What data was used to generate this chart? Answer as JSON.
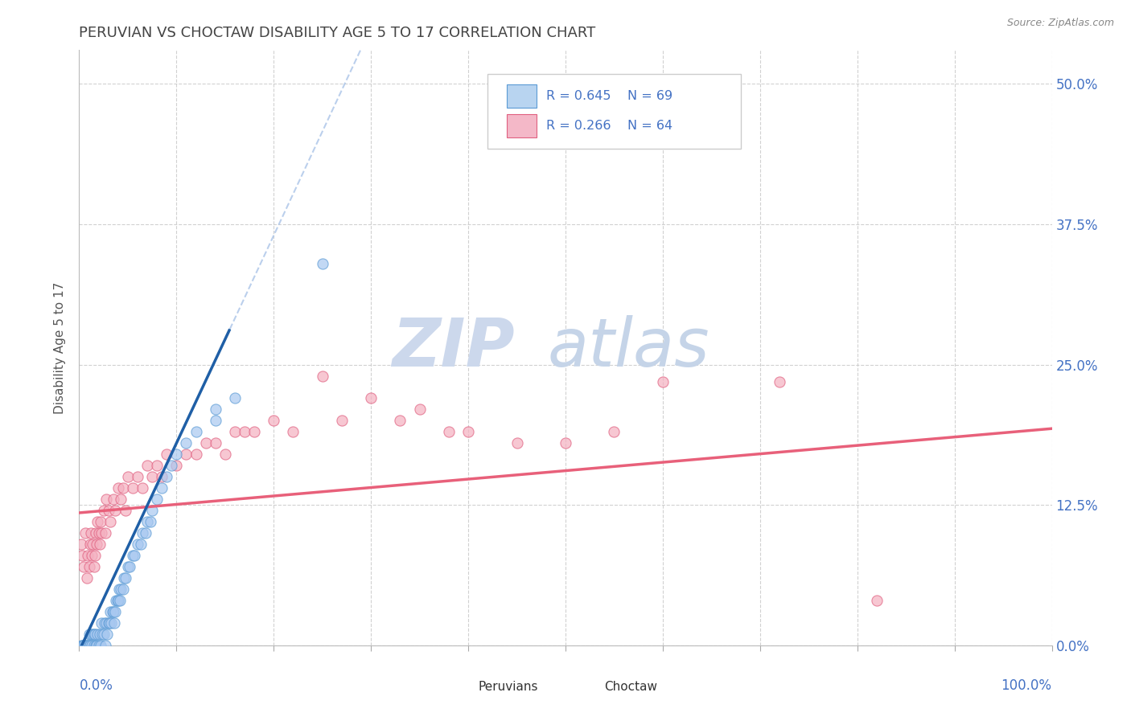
{
  "title": "PERUVIAN VS CHOCTAW DISABILITY AGE 5 TO 17 CORRELATION CHART",
  "source": "Source: ZipAtlas.com",
  "ylabel": "Disability Age 5 to 17",
  "ytick_labels": [
    "0.0%",
    "12.5%",
    "25.0%",
    "37.5%",
    "50.0%"
  ],
  "ytick_values": [
    0.0,
    0.125,
    0.25,
    0.375,
    0.5
  ],
  "xlim": [
    0.0,
    1.0
  ],
  "ylim": [
    0.0,
    0.53
  ],
  "peruvians_scatter_color": "#a8c8f0",
  "peruvians_edge_color": "#5b9bd5",
  "choctaw_scatter_color": "#f4b0c0",
  "choctaw_edge_color": "#e06080",
  "peruvians_line_color": "#1f5fa6",
  "choctaw_line_color": "#e8607a",
  "dashed_line_color": "#aac4e8",
  "R_peruvian": 0.645,
  "N_peruvian": 69,
  "R_choctaw": 0.266,
  "N_choctaw": 64,
  "legend_peruvians_face": "#b8d4f0",
  "legend_choctaw_face": "#f4b8c8",
  "grid_color": "#cccccc",
  "background_color": "#ffffff",
  "tick_label_color": "#4472c4",
  "title_color": "#444444",
  "peru_line_slope": 1.85,
  "peru_line_intercept": -0.005,
  "choc_line_slope": 0.075,
  "choc_line_intercept": 0.118,
  "peruvians_x": [
    0.002,
    0.003,
    0.004,
    0.005,
    0.006,
    0.007,
    0.008,
    0.009,
    0.01,
    0.01,
    0.011,
    0.012,
    0.013,
    0.014,
    0.015,
    0.015,
    0.016,
    0.017,
    0.018,
    0.019,
    0.02,
    0.021,
    0.022,
    0.023,
    0.024,
    0.025,
    0.026,
    0.027,
    0.028,
    0.029,
    0.03,
    0.031,
    0.032,
    0.033,
    0.034,
    0.035,
    0.036,
    0.037,
    0.038,
    0.039,
    0.04,
    0.041,
    0.042,
    0.043,
    0.045,
    0.046,
    0.048,
    0.05,
    0.052,
    0.055,
    0.057,
    0.06,
    0.063,
    0.065,
    0.068,
    0.07,
    0.073,
    0.075,
    0.08,
    0.085,
    0.09,
    0.095,
    0.1,
    0.11,
    0.12,
    0.14,
    0.16,
    0.25,
    0.14
  ],
  "peruvians_y": [
    0.0,
    0.0,
    0.0,
    0.0,
    0.0,
    0.0,
    0.0,
    0.0,
    0.0,
    0.01,
    0.0,
    0.01,
    0.0,
    0.01,
    0.0,
    0.01,
    0.01,
    0.0,
    0.0,
    0.01,
    0.0,
    0.01,
    0.0,
    0.02,
    0.01,
    0.01,
    0.02,
    0.0,
    0.02,
    0.01,
    0.02,
    0.02,
    0.03,
    0.02,
    0.03,
    0.03,
    0.02,
    0.03,
    0.04,
    0.04,
    0.04,
    0.05,
    0.04,
    0.05,
    0.05,
    0.06,
    0.06,
    0.07,
    0.07,
    0.08,
    0.08,
    0.09,
    0.09,
    0.1,
    0.1,
    0.11,
    0.11,
    0.12,
    0.13,
    0.14,
    0.15,
    0.16,
    0.17,
    0.18,
    0.19,
    0.21,
    0.22,
    0.34,
    0.2
  ],
  "choctaw_x": [
    0.002,
    0.003,
    0.005,
    0.006,
    0.008,
    0.009,
    0.01,
    0.011,
    0.012,
    0.013,
    0.014,
    0.015,
    0.016,
    0.017,
    0.018,
    0.019,
    0.02,
    0.021,
    0.022,
    0.023,
    0.025,
    0.027,
    0.028,
    0.03,
    0.032,
    0.035,
    0.037,
    0.04,
    0.043,
    0.045,
    0.048,
    0.05,
    0.055,
    0.06,
    0.065,
    0.07,
    0.075,
    0.08,
    0.085,
    0.09,
    0.1,
    0.11,
    0.12,
    0.13,
    0.14,
    0.15,
    0.16,
    0.17,
    0.18,
    0.2,
    0.22,
    0.25,
    0.27,
    0.3,
    0.33,
    0.35,
    0.38,
    0.4,
    0.45,
    0.5,
    0.55,
    0.6,
    0.72,
    0.82
  ],
  "choctaw_y": [
    0.09,
    0.08,
    0.07,
    0.1,
    0.06,
    0.08,
    0.07,
    0.09,
    0.1,
    0.08,
    0.09,
    0.07,
    0.08,
    0.1,
    0.09,
    0.11,
    0.1,
    0.09,
    0.11,
    0.1,
    0.12,
    0.1,
    0.13,
    0.12,
    0.11,
    0.13,
    0.12,
    0.14,
    0.13,
    0.14,
    0.12,
    0.15,
    0.14,
    0.15,
    0.14,
    0.16,
    0.15,
    0.16,
    0.15,
    0.17,
    0.16,
    0.17,
    0.17,
    0.18,
    0.18,
    0.17,
    0.19,
    0.19,
    0.19,
    0.2,
    0.19,
    0.24,
    0.2,
    0.22,
    0.2,
    0.21,
    0.19,
    0.19,
    0.18,
    0.18,
    0.19,
    0.235,
    0.235,
    0.04
  ]
}
